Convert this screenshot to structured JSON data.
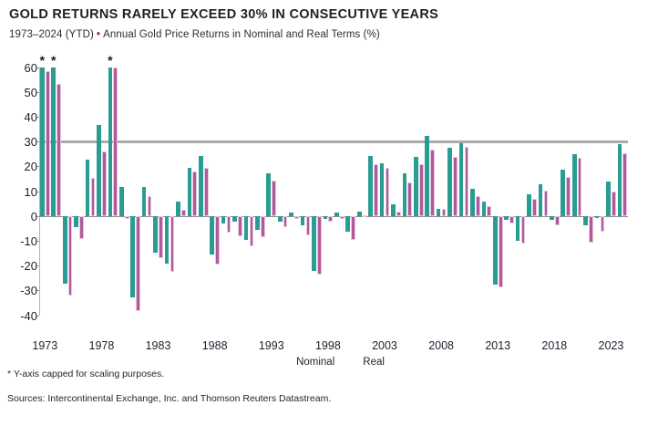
{
  "header": {
    "title": "GOLD RETURNS RARELY EXCEED 30% IN CONSECUTIVE YEARS",
    "subtitle_range": "1973–2024 (YTD)",
    "subtitle_bullet": "•",
    "subtitle_desc": "Annual Gold Price Returns in Nominal and Real Terms (%)"
  },
  "footer": {
    "footnote": "* Y-axis capped for scaling purposes.",
    "sources": "Sources: Intercontinental Exchange, Inc. and Thomson Reuters Datastream."
  },
  "chart_data": {
    "type": "bar",
    "title": "GOLD RETURNS RARELY EXCEED 30% IN CONSECUTIVE YEARS",
    "subtitle": "1973–2024 (YTD) • Annual Gold Price Returns in Nominal and Real Terms (%)",
    "ylim": [
      -40,
      60
    ],
    "yticks": [
      60,
      50,
      40,
      30,
      20,
      10,
      0,
      -10,
      -20,
      -30,
      -40
    ],
    "xtick_labels": [
      "1973",
      "1978",
      "1983",
      "1988",
      "1993",
      "1998",
      "2003",
      "2008",
      "2013",
      "2018",
      "2023"
    ],
    "reference_line": 30,
    "y_axis_capped_at": 60,
    "capped_years": [
      1973,
      1974,
      1979
    ],
    "grid": false,
    "legend_position": "bottom-center",
    "colors": {
      "nominal": "#2a9d92",
      "real": "#b05a9d",
      "real_edge": "#e7c8e0",
      "reference_line": "#ababab",
      "accent_bullet": "#8e3b3e"
    },
    "legend": [
      {
        "label": "Nominal",
        "color": "#2a9d92"
      },
      {
        "label": "Real",
        "color": "#b05a9d"
      }
    ],
    "years": [
      1973,
      1974,
      1975,
      1976,
      1977,
      1978,
      1979,
      1980,
      1981,
      1982,
      1983,
      1984,
      1985,
      1986,
      1987,
      1988,
      1989,
      1990,
      1991,
      1992,
      1993,
      1994,
      1995,
      1996,
      1997,
      1998,
      1999,
      2000,
      2001,
      2002,
      2003,
      2004,
      2005,
      2006,
      2007,
      2008,
      2009,
      2010,
      2011,
      2012,
      2013,
      2014,
      2015,
      2016,
      2017,
      2018,
      2019,
      2020,
      2021,
      2022,
      2023,
      2024
    ],
    "series": [
      {
        "name": "Nominal",
        "values": [
          60,
          60,
          -27,
          -4.5,
          23,
          37,
          60,
          12,
          -32.5,
          12,
          -14.5,
          -19,
          6,
          19.5,
          24.5,
          -15.5,
          -3,
          -2,
          -9.5,
          -5.5,
          17.5,
          -2,
          1.5,
          -3.5,
          -22,
          -1,
          1.5,
          -6,
          2,
          24.5,
          21.5,
          5,
          17.5,
          24,
          32.5,
          3,
          27.5,
          29.5,
          11,
          6,
          -27.5,
          -1.5,
          -10,
          9,
          13,
          -1.5,
          19,
          25,
          -3.5,
          -0.5,
          14,
          29
        ]
      },
      {
        "name": "Real",
        "values": [
          58.5,
          53.5,
          -32,
          -9,
          15.5,
          26,
          60,
          -1,
          -38,
          8,
          -17,
          -22.5,
          2.5,
          18,
          19.5,
          -19.5,
          -6.5,
          -8,
          -12,
          -8.5,
          14.5,
          -4.5,
          -1,
          -7.5,
          -23.5,
          -2,
          -1,
          -9.5,
          0.5,
          21,
          19.5,
          2,
          13.5,
          21,
          27,
          3,
          24,
          28,
          8,
          4,
          -28.5,
          -3,
          -11,
          7,
          10.5,
          -3.5,
          16,
          23.5,
          -10.5,
          -6,
          10,
          25.5
        ]
      }
    ]
  }
}
